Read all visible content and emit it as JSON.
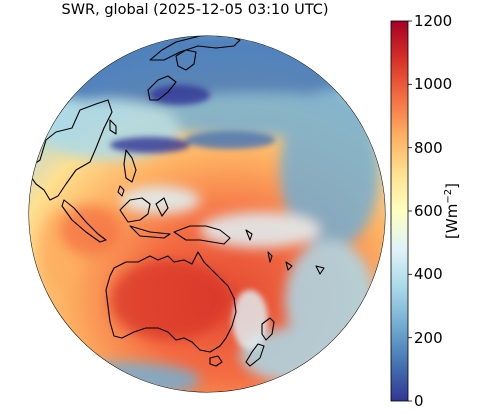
{
  "title": "SWR, global (2025-12-05 03:10 UTC)",
  "colorbar": {
    "unit_prefix": "[Wm",
    "unit_exponent": "−2",
    "unit_suffix": "]",
    "min": 0,
    "max": 1200,
    "ticks": [
      "0",
      "200",
      "400",
      "600",
      "800",
      "1000",
      "1200"
    ],
    "colors": [
      "#313695",
      "#4575b4",
      "#74add1",
      "#abd9e9",
      "#e0f3f8",
      "#ffffbf",
      "#fee090",
      "#fdae61",
      "#f46d43",
      "#d73027",
      "#a50026"
    ]
  },
  "map": {
    "projection": "orthographic",
    "coastline_color": "#000000",
    "ocean_background": "#ffffff"
  }
}
